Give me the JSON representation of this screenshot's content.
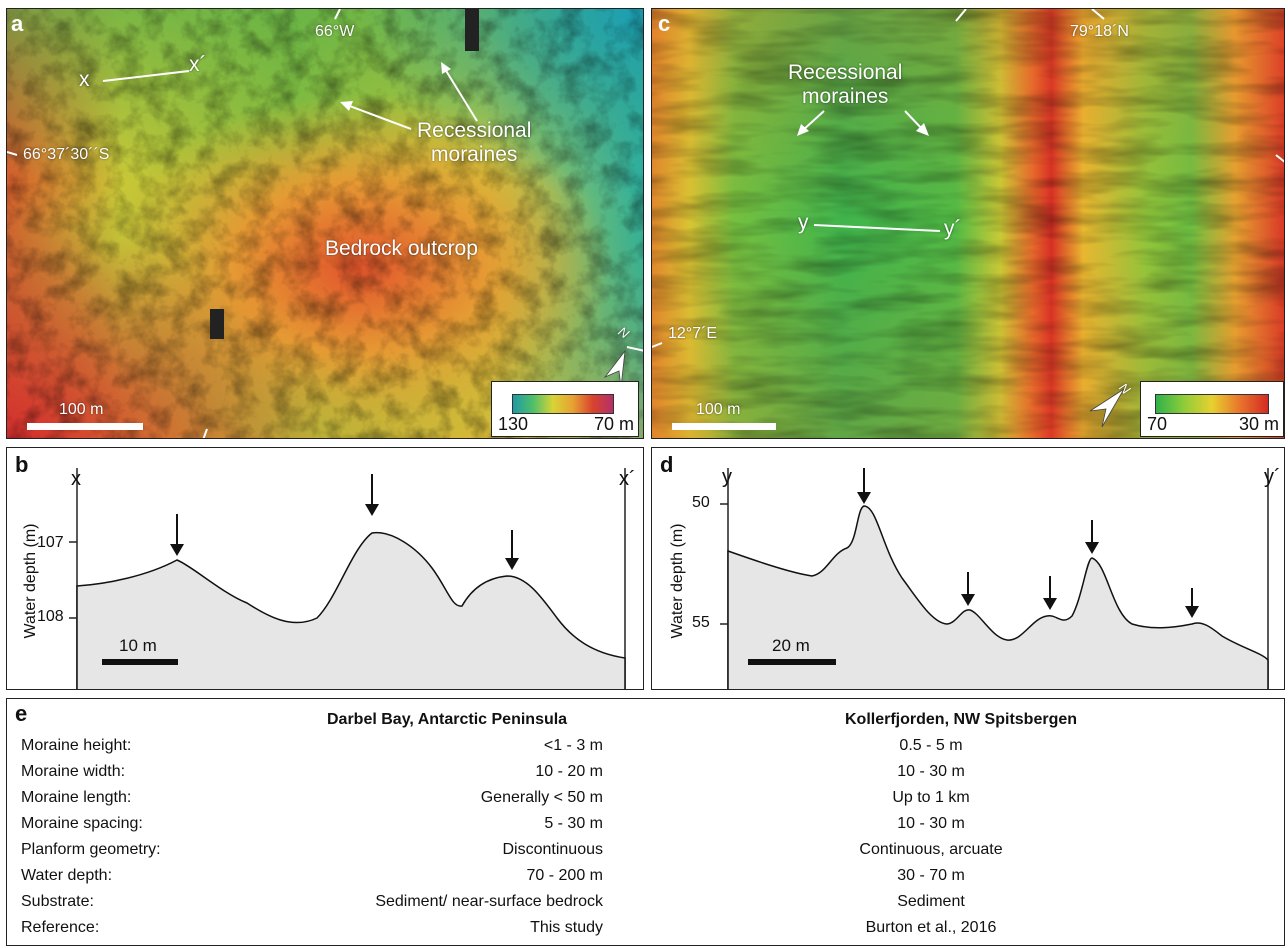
{
  "panel_a": {
    "label": "a",
    "coord_lon": "66°W",
    "coord_lat": "66°37´30´´S",
    "profile_start": "x",
    "profile_end": "x´",
    "annotation": "Recessional\nmoraines",
    "outcrop": "Bedrock outcrop",
    "north": "N",
    "scale": "100 m",
    "legend_min": "130",
    "legend_max": "70 m"
  },
  "panel_c": {
    "label": "c",
    "coord_lat": "79°18´N",
    "coord_lon": "12°7´E",
    "profile_start": "y",
    "profile_end": "y´",
    "annotation": "Recessional\nmoraines",
    "north": "N",
    "scale": "100 m",
    "legend_min": "70",
    "legend_max": "30 m"
  },
  "panel_b": {
    "label": "b",
    "start": "x",
    "end": "x´",
    "ylabel": "Water depth (m)",
    "tick_top": "107",
    "tick_bottom": "108",
    "scale": "10 m"
  },
  "panel_d": {
    "label": "d",
    "start": "y",
    "end": "y´",
    "ylabel": "Water depth (m)",
    "tick_top": "50",
    "tick_bottom": "55",
    "scale": "20 m"
  },
  "table": {
    "label": "e",
    "col1_header": "Darbel Bay, Antarctic Peninsula",
    "col2_header": "Kollerfjorden, NW Spitsbergen",
    "rows": [
      {
        "attr": "Moraine height:",
        "v1": "<1 - 3 m",
        "v2": "0.5 - 5 m"
      },
      {
        "attr": "Moraine width:",
        "v1": "10 - 20 m",
        "v2": "10 - 30 m"
      },
      {
        "attr": "Moraine length:",
        "v1": "Generally < 50 m",
        "v2": "Up to 1 km"
      },
      {
        "attr": "Moraine spacing:",
        "v1": "5 - 30 m",
        "v2": "10 - 30 m"
      },
      {
        "attr": "Planform geometry:",
        "v1": "Discontinuous",
        "v2": "Continuous, arcuate"
      },
      {
        "attr": "Water depth:",
        "v1": "70 - 200 m",
        "v2": "30 - 70 m"
      },
      {
        "attr": "Substrate:",
        "v1": "Sediment/ near-surface bedrock",
        "v2": "Sediment"
      },
      {
        "attr": "Reference:",
        "v1": "This study",
        "v2": "Burton et al., 2016"
      }
    ]
  },
  "colors": {
    "map_a": [
      "#2aa876",
      "#7cc043",
      "#d9d232",
      "#e79a2e",
      "#d8432e"
    ],
    "map_c": [
      "#2fb24a",
      "#8fcc3a",
      "#e8d030",
      "#e8742b",
      "#d42b24"
    ],
    "profile_fill": "#e6e6e6"
  }
}
